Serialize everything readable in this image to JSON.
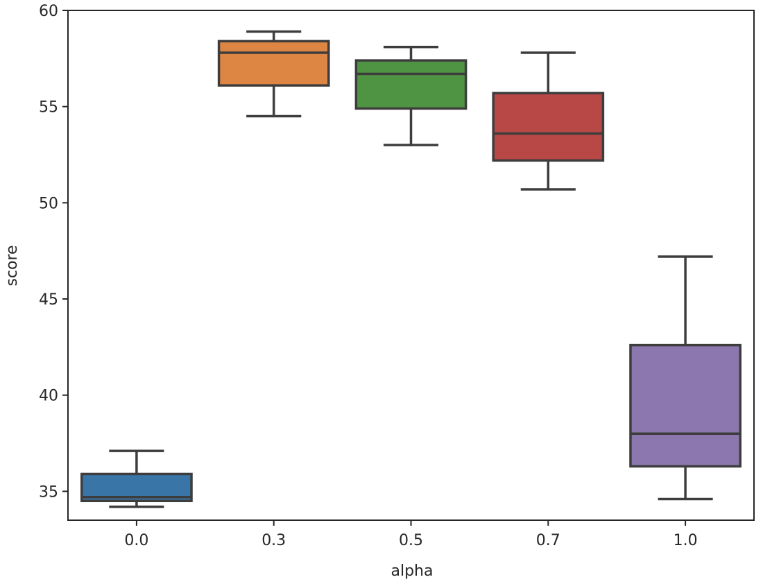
{
  "chart_data": {
    "type": "box",
    "title": "",
    "xlabel": "alpha",
    "ylabel": "score",
    "ylim": [
      33.5,
      60.0
    ],
    "yticks": [
      35,
      40,
      45,
      50,
      55,
      60
    ],
    "ytick_labels": [
      "35",
      "40",
      "45",
      "50",
      "55",
      "60"
    ],
    "categories": [
      "0.0",
      "0.3",
      "0.5",
      "0.7",
      "1.0"
    ],
    "boxes": [
      {
        "category": "0.0",
        "whisker_low": 34.2,
        "q1": 34.5,
        "median": 34.7,
        "q3": 35.9,
        "whisker_high": 37.1,
        "color": "#3a75a8"
      },
      {
        "category": "0.3",
        "whisker_low": 54.5,
        "q1": 56.1,
        "median": 57.8,
        "q3": 58.4,
        "whisker_high": 58.9,
        "color": "#dd8542"
      },
      {
        "category": "0.5",
        "whisker_low": 53.0,
        "q1": 54.9,
        "median": 56.7,
        "q3": 57.4,
        "whisker_high": 58.1,
        "color": "#4f9442"
      },
      {
        "category": "0.7",
        "whisker_low": 50.7,
        "q1": 52.2,
        "median": 53.6,
        "q3": 55.7,
        "whisker_high": 57.8,
        "color": "#b84846"
      },
      {
        "category": "1.0",
        "whisker_low": 34.6,
        "q1": 36.3,
        "median": 38.0,
        "q3": 42.6,
        "whisker_high": 47.2,
        "color": "#8c78ae"
      }
    ],
    "grid": false,
    "legend": "none"
  }
}
